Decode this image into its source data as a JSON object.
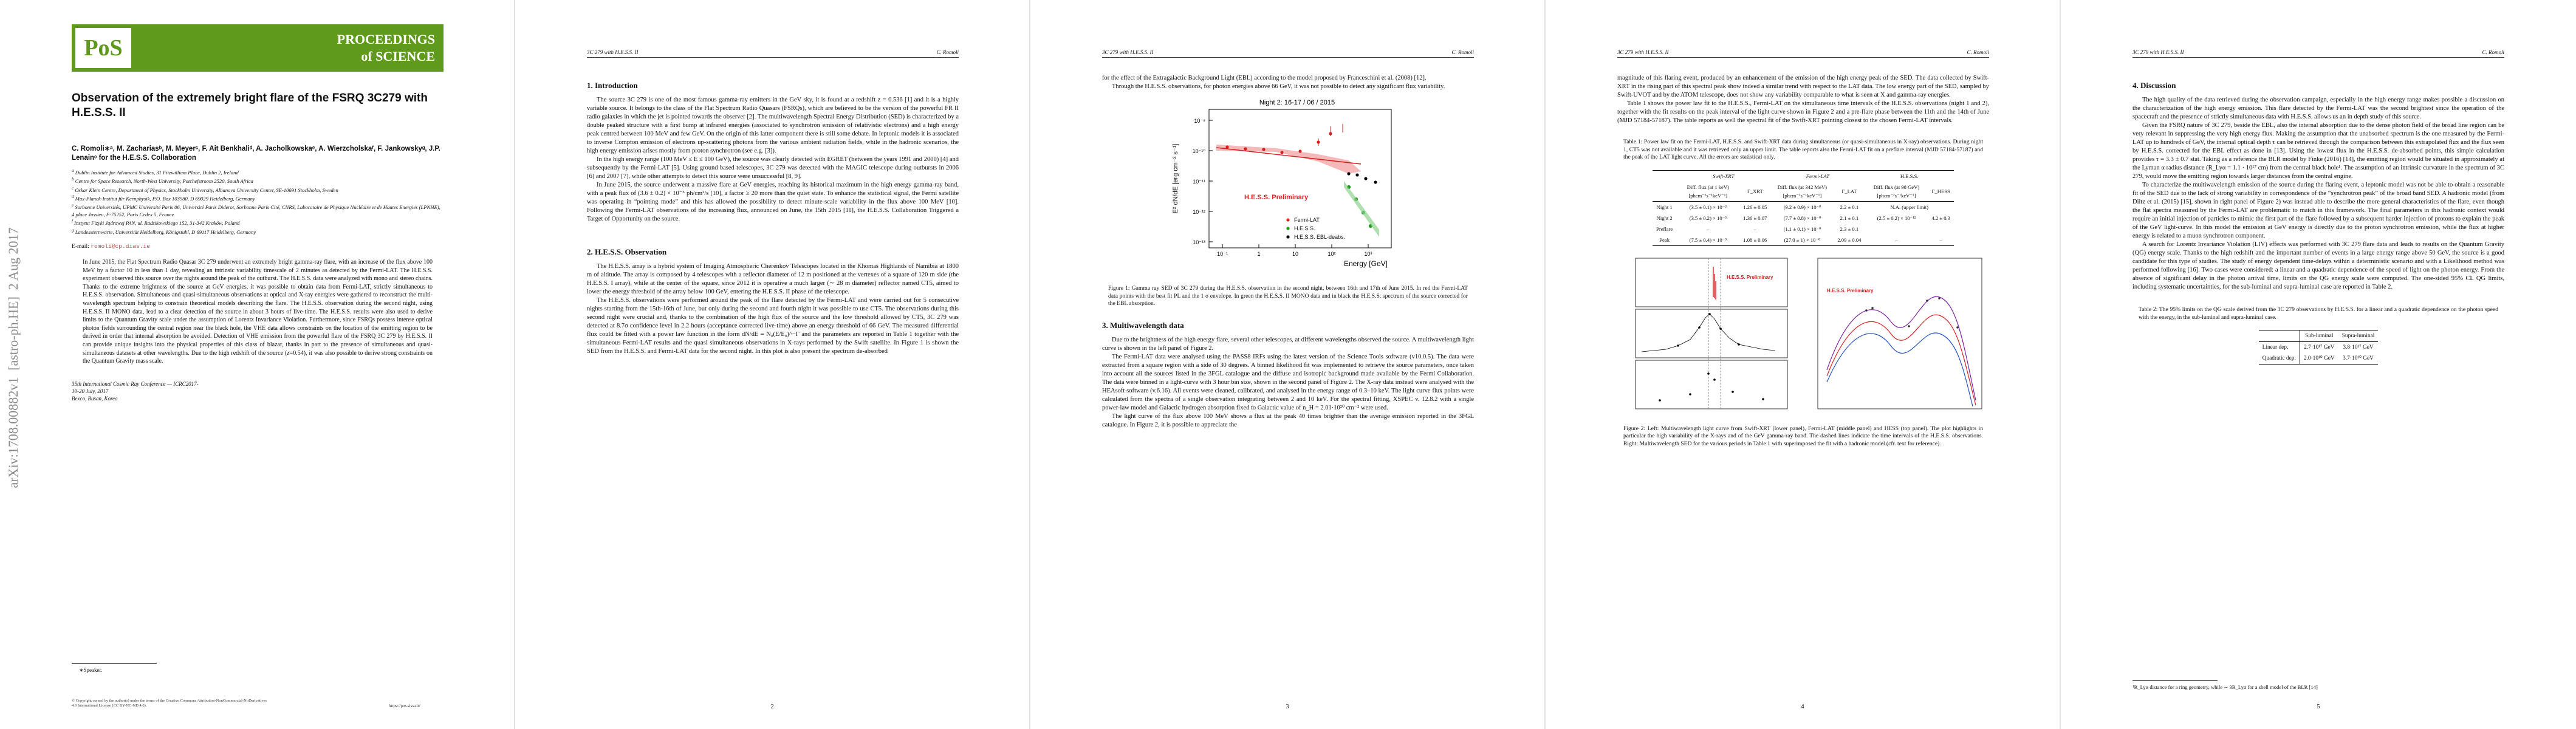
{
  "arxiv_stamp": "arXiv:1708.00882v1  [astro-ph.HE]  2 Aug 2017",
  "logo": {
    "abbr": "PoS",
    "line1": "PROCEEDINGS",
    "line2": "of SCIENCE"
  },
  "title": "Observation of the extremely bright flare of the FSRQ 3C279 with H.E.S.S. II",
  "authors": "C. Romoli∗ᵃ, M. Zachariasᵇ, M. Meyerᶜ, F. Ait Benkhaliᵈ, A. Jacholkowskaᵉ, A. Wierzcholskaᶠ, F. Jankowskyᵍ, J.P. Lenainᵉ for the H.E.S.S. Collaboration",
  "affiliations": [
    {
      "mark": "a",
      "text": "Dublin Institute for Advanced Studies, 31 Fitzwilliam Place, Dublin 2, Ireland"
    },
    {
      "mark": "b",
      "text": "Centre for Space Research, North-West University, Potchefstroom 2520, South Africa"
    },
    {
      "mark": "c",
      "text": "Oskar Klein Centre, Department of Physics, Stockholm University, Albanova University Center, SE-10691 Stockholm, Sweden"
    },
    {
      "mark": "d",
      "text": "Max-Planck-Institut für Kernphysik, P.O. Box 103980, D 69029 Heidelberg, Germany"
    },
    {
      "mark": "e",
      "text": "Sorbonne Universités, UPMC Université Paris 06, Université Paris Diderot, Sorbonne Paris Cité, CNRS, Laboratoire de Physique Nucléaire et de Hautes Energies (LPNHE), 4 place Jussieu, F-75252, Paris Cedex 5, France"
    },
    {
      "mark": "f",
      "text": "Instytut Fizyki Jądrowej PAN, ul. Radzikowskiego 152, 31-342 Kraków, Poland"
    },
    {
      "mark": "g",
      "text": "Landessternwarte, Universität Heidelberg, Königstuhl, D 69117 Heidelberg, Germany"
    }
  ],
  "email": {
    "label": "E-mail:",
    "address": "romoli@cp.dias.ie"
  },
  "abstract": "In June 2015, the Flat Spectrum Radio Quasar 3C 279 underwent an extremely bright gamma-ray flare, with an increase of the flux above 100 MeV by a factor 10 in less than 1 day, revealing an intrinsic variability timescale of 2 minutes as detected by the Fermi-LAT. The H.E.S.S. experiment observed this source over the nights around the peak of the outburst. The H.E.S.S. data were analyzed with mono and stereo chains. Thanks to the extreme brightness of the source at GeV energies, it was possible to obtain data from Fermi-LAT, strictly simultaneous to H.E.S.S. observation. Simultaneous and quasi-simultaneous observations at optical and X-ray energies were gathered to reconstruct the multi-wavelength spectrum helping to constrain theoretical models describing the flare. The H.E.S.S. observation during the second night, using H.E.S.S. II MONO data, lead to a clear detection of the source in about 3 hours of live-time. The H.E.S.S. results were also used to derive limits to the Quantum Gravity scale under the assumption of Lorentz Invariance Violation. Furthermore, since FSRQs possess intense optical photon fields surrounding the central region near the black hole, the VHE data allows constraints on the location of the emitting region to be derived in order that internal absorption be avoided. Detection of VHE emission from the powerful flare of the FSRQ 3C 279 by H.E.S.S. II can provide unique insights into the physical properties of this class of blazar, thanks in part to the presence of simultaneous and quasi-simultaneous datasets at other wavelengths. Due to the high redshift of the source (z=0.54), it was also possible to derive strong constraints on the Quantum Gravity mass scale.",
  "conference": [
    "35th International Cosmic Ray Conference — ICRC2017-",
    "10-20 July, 2017",
    "Bexco, Busan, Korea"
  ],
  "footnote_speaker": "∗Speaker.",
  "license": "© Copyright owned by the author(s) under the terms of the Creative Commons Attribution-NonCommercial-NoDerivatives 4.0 International License (CC BY-NC-ND 4.0).",
  "url": "https://pos.sissa.it/",
  "running_header": {
    "left": "3C 279 with H.E.S.S. II",
    "right": "C. Romoli"
  },
  "page2": {
    "number": 2,
    "sections": [
      {
        "heading": "1. Introduction",
        "paragraphs": [
          "The source 3C 279 is one of the most famous gamma-ray emitters in the GeV sky, it is found at a redshift z = 0.536 [1] and it is a highly variable source. It belongs to the class of the Flat Spectrum Radio Quasars (FSRQs), which are believed to be the version of the powerful FR II radio galaxies in which the jet is pointed towards the observer [2]. The multiwavelength Spectral Energy Distribution (SED) is characterized by a double peaked structure with a first bump at infrared energies (associated to synchrotron emission of relativistic electrons) and a high energy peak centred between 100 MeV and few GeV. On the origin of this latter component there is still some debate. In leptonic models it is associated to inverse Compton emission of electrons up-scattering photons from the various ambient radiation fields, while in the hadronic scenarios, the high energy emission arises mostly from proton synchrotron (see e.g. [3]).",
          "In the high energy range (100 MeV ≤ E ≤ 100 GeV), the source was clearly detected with EGRET (between the years 1991 and 2000) [4] and subsequently by the Fermi-LAT [5]. Using ground based telescopes, 3C 279 was detected with the MAGIC telescope during outbursts in 2006 [6] and 2007 [7], while other attempts to detect this source were unsuccessful [8, 9].",
          "In June 2015, the source underwent a massive flare at GeV energies, reaching its historical maximum in the high energy gamma-ray band, with a peak flux of (3.6 ± 0.2) × 10⁻⁵ ph/cm²/s [10], a factor ≥ 20 more than the quiet state. To enhance the statistical signal, the Fermi satellite was operating in “pointing mode” and this has allowed the possibility to detect minute-scale variability in the flux above 100 MeV [10]. Following the Fermi-LAT observations of the increasing flux, announced on June, the 15th 2015 [11], the H.E.S.S. Collaboration Triggered a Target of Opportunity on the source."
        ]
      },
      {
        "heading": "2. H.E.S.S. Observation",
        "paragraphs": [
          "The H.E.S.S. array is a hybrid system of Imaging Atmospheric Cherenkov Telescopes located in the Khomas Highlands of Namibia at 1800 m of altitude. The array is composed by 4 telescopes with a reflector diameter of 12 m positioned at the vertexes of a square of 120 m side (the H.E.S.S. I array), while at the center of the square, since 2012 it is operative a much larger (∼ 28 m diameter) reflector named CT5, aimed to lower the energy threshold of the array below 100 GeV, entering the H.E.S.S. II phase of the telescope.",
          "The H.E.S.S. observations were performed around the peak of the flare detected by the Fermi-LAT and were carried out for 5 consecutive nights starting from the 15th-16th of June, but only during the second and fourth night it was possible to use CT5. The observations during this second night were crucial and, thanks to the combination of the high flux of the source and the low threshold allowed by CT5, 3C 279 was detected at 8.7σ confidence level in 2.2 hours (acceptance corrected live-time) above an energy threshold of 66 GeV. The measured differential flux could be fitted with a power law function in the form dN/dE = N₀(E/E₀)^−Γ and the parameters are reported in Table 1 together with the simultaneous Fermi-LAT results and the quasi simultaneous observations in X-rays performed by the Swift satellite. In Figure 1 is shown the SED from the H.E.S.S. and Fermi-LAT data for the second night. In this plot is also present the spectrum de-absorbed"
        ]
      }
    ]
  },
  "page3": {
    "number": 3,
    "paragraphs": [
      "for the effect of the Extragalactic Background Light (EBL) according to the model proposed by Franceschini et al. (2008) [12].",
      "Through the H.E.S.S. observations, for photon energies above 66 GeV, it was not possible to detect any significant flux variability."
    ],
    "figure1": {
      "plot_title": "Night 2: 16-17 / 06 / 2015",
      "y_label": "E² dN/dE [erg cm⁻² s⁻¹]",
      "x_label": "Energy [GeV]",
      "y_tick_labels": [
        "10⁻⁹",
        "10⁻¹⁰",
        "10⁻¹¹",
        "10⁻¹²",
        "10⁻¹³"
      ],
      "x_tick_labels": [
        "10⁻¹",
        "1",
        "10",
        "10²",
        "10³"
      ],
      "watermark": "H.E.S.S. Preliminary",
      "legend": [
        "Fermi-LAT",
        "H.E.S.S.",
        "H.E.S.S. EBL-deabs."
      ],
      "caption": "Figure 1: Gamma ray SED of 3C 279 during the H.E.S.S. observation in the second night, between 16th and 17th of June 2015. In red the Fermi-LAT data points with the best fit PL and the 1 σ envelope. In green the H.E.S.S. II MONO data and in black the H.E.S.S. spectrum of the source corrected for the EBL absorption."
    },
    "section": {
      "heading": "3. Multiwavelength data",
      "paragraphs": [
        "Due to the brightness of the high energy flare, several other telescopes, at different wavelengths observed the source. A multiwavelength light curve is shown in the left panel of Figure 2.",
        "The Fermi-LAT data were analysed using the PASS8 IRFs using the latest version of the Science Tools software (v10.0.5). The data were extracted from a square region with a side of 30 degrees. A binned likelihood fit was implemented to retrieve the source parameters, once taken into account all the sources listed in the 3FGL catalogue and the diffuse and isotropic background made available by the Fermi Collaboration. The data were binned in a light-curve with 3 hour bin size, shown in the second panel of Figure 2. The X-ray data instead were analysed with the HEAsoft software (v.6.16). All events were cleaned, calibrated, and analysed in the energy range of 0.3–10 keV. The light curve flux points were calculated from the spectra of a single observation integrating between 2 and 10 keV. For the spectral fitting, XSPEC v. 12.8.2 with a single power-law model and Galactic hydrogen absorption fixed to Galactic value of n_H = 2.01·10²⁰ cm⁻² were used.",
        "The light curve of the flux above 100 MeV shows a flux at the peak 40 times brighter than the average emission reported in the 3FGL catalogue. In Figure 2, it is possible to appreciate the"
      ]
    }
  },
  "page4": {
    "number": 4,
    "paragraphs": [
      "magnitude of this flaring event, produced by an enhancement of the emission of the high energy peak of the SED. The data collected by Swift-XRT in the rising part of this spectral peak show indeed a similar trend with respect to the LAT data. The low energy part of the SED, sampled by Swift-UVOT and by the ATOM telescope, does not show any variability comparable to what is seen at X and gamma-ray energies.",
      "Table 1 shows the power law fit to the H.E.S.S., Fermi-LAT on the simultaneous time intervals of the H.E.S.S. observations (night 1 and 2), together with the fit results on the peak interval of the light curve shown in Figure 2 and a pre-flare phase between the 11th and the 14th of June (MJD 57184-57187). The table reports as well the spectral fit of the Swift-XRT pointing closest to the chosen Fermi-LAT intervals."
    ],
    "table1": {
      "caption": "Table 1: Power law fit on the Fermi-LAT, H.E.S.S. and Swift-XRT data during simultaneous (or quasi-simultaneous in X-ray) observations. During night 1, CT5 was not available and it was retrieved only an upper limit. The table reports also the Fermi-LAT fit on a preflare interval (MJD 57184-57187) and the peak of the LAT light curve. All the errors are statistical only.",
      "groups": [
        "Swift-XRT",
        "Fermi-LAT",
        "H.E.S.S."
      ],
      "columns": [
        "Diff. flux (at 1 keV) [phcm⁻²s⁻¹keV⁻¹]",
        "Γ_XRT",
        "Diff. flux (at 342 MeV) [phcm⁻²s⁻¹keV⁻¹]",
        "Γ_LAT",
        "Diff. flux (at 98 GeV) [phcm⁻²s⁻¹keV⁻¹]",
        "Γ_HESS"
      ],
      "rows": [
        [
          "Night 1",
          "(3.5 ± 0.1) × 10⁻³",
          "1.26 ± 0.05",
          "(9.2 ± 0.9) × 10⁻⁸",
          "2.2 ± 0.1",
          "N.A. (upper limit)"
        ],
        [
          "Night 2",
          "(3.5 ± 0.2) × 10⁻³",
          "1.36 ± 0.07",
          "(7.7 ± 0.8) × 10⁻⁸",
          "2.1 ± 0.1",
          "(2.5 ± 0.2) × 10⁻¹²",
          "4.2 ± 0.3"
        ],
        [
          "Preflare",
          "–",
          "–",
          "(1.1 ± 0.1) × 10⁻⁸",
          "2.3 ± 0.1"
        ],
        [
          "Peak",
          "(7.5 ± 0.4) × 10⁻³",
          "1.08 ± 0.06",
          "(27.0 ± 1) × 10⁻⁸",
          "2.09 ± 0.04",
          "–",
          "–"
        ]
      ]
    },
    "figure2": {
      "watermark": "H.E.S.S. Preliminary",
      "caption": "Figure 2: Left: Multiwavelength light curve from Swift-XRT (lower panel), Fermi-LAT (middle panel) and HESS (top panel). The plot highlights in particular the high variability of the X-rays and of the GeV gamma-ray band. The dashed lines indicate the time intervals of the H.E.S.S. observations. Right: Multiwavelength SED for the various periods in Table 1 with superimposed the fit with a hadronic model (cfr. text for reference)."
    }
  },
  "page5": {
    "number": 5,
    "section": {
      "heading": "4. Discussion",
      "paragraphs": [
        "The high quality of the data retrieved during the observation campaign, especially in the high energy range makes possible a discussion on the characterization of the high energy emission. This flare detected by the Fermi-LAT was the second brightest since the operation of the spacecraft and the presence of strictly simultaneous data with H.E.S.S. allows us an in depth study of this source.",
        "Given the FSRQ nature of 3C 279, beside the EBL, also the internal absorption due to the dense photon field of the broad line region can be very relevant in suppressing the very high energy flux. Making the assumption that the unabsorbed spectrum is the one measured by the Fermi-LAT up to hundreds of GeV, the internal optical depth τ can be retrieved through the comparison between this extrapolated flux and the flux seen by H.E.S.S. corrected for the EBL effect as done in [13]. Using the lowest flux in the H.E.S.S. de-absorbed points, this simple calculation provides τ = 3.3 ± 0.7 stat. Taking as a reference the BLR model by Finke (2016) [14], the emitting region would be situated in approximately at the Lyman α radius distance (R_Lyα = 1.1 · 10¹⁷ cm) from the central black hole¹. The assumption of an intrinsic curvature in the spectrum of 3C 279, would move the emitting region towards larger distances from the central engine.",
        "To characterize the multiwavelength emission of the source during the flaring event, a leptonic model was not be able to obtain a reasonable fit of the SED due to the lack of strong variability in correspondence of the “synchrotron peak” of the broad band SED. A hadronic model (from Diltz et al. (2015) [15], shown in right panel of Figure 2) was instead able to describe the more general characteristics of the flare, even though the flat spectra measured by the Fermi-LAT are problematic to match in this framework. The final parameters in this hadronic context would require an initial injection of particles to mimic the first part of the flare followed by a subsequent harder injection of protons to explain the peak of the GeV light-curve. In this model the emission at GeV energy is directly due to the proton synchrotron emission, while the flux at higher energy is related to a muon synchrotron component.",
        "A search for Lorentz Invariance Violation (LIV) effects was performed with 3C 279 flare data and leads to results on the Quantum Gravity (QG) energy scale. Thanks to the high redshift and the important number of events in a large energy range above 50 GeV, the source is a good candidate for this type of studies. The study of energy dependent time-delays within a deterministic scenario and with a Likelihood method was performed following [16]. Two cases were considered: a linear and a quadratic dependence of the speed of light on the photon energy. From the absence of significant delay in the photon arrival time, limits on the QG energy scale were computed. The one-sided 95% CL QG limits, including systematic uncertainties, for the sub-luminal and supra-luminal case are reported in Table 2."
      ]
    },
    "table2": {
      "caption": "Table 2: The 95% limits on the QG scale derived from the 3C 279 observations by H.E.S.S. for a linear and a quadratic dependence on the photon speed with the energy, in the sub-luminal and supra-luminal case.",
      "columns": [
        "Sub-luminal",
        "Supra-luminal"
      ],
      "rows": [
        [
          "Linear dep.",
          "2.7·10¹⁷ GeV",
          "3.8·10¹⁷ GeV"
        ],
        [
          "Quadratic dep.",
          "2.0·10¹⁰ GeV",
          "3.7·10¹⁰ GeV"
        ]
      ]
    },
    "footnote": "¹R_Lyα distance for a ring geometry, while ∼ 3R_Lyα for a shell model of the BLR [14]"
  }
}
